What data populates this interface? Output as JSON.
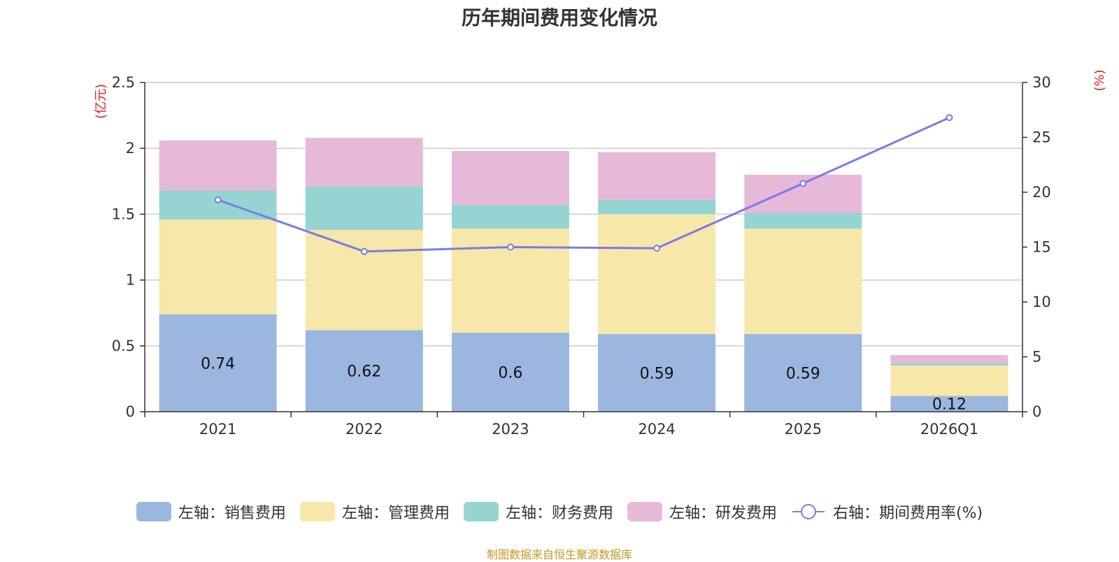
{
  "chart_data": {
    "type": "bar",
    "stacked": true,
    "title": "历年期间费用变化情况",
    "categories": [
      "2021",
      "2022",
      "2023",
      "2024",
      "2025",
      "2026Q1"
    ],
    "series": [
      {
        "name": "左轴：销售费用",
        "axis": "left",
        "color": "#9bb7e0",
        "values": [
          0.74,
          0.62,
          0.6,
          0.59,
          0.59,
          0.12
        ]
      },
      {
        "name": "左轴：管理费用",
        "axis": "left",
        "color": "#f7e7a8",
        "values": [
          0.72,
          0.76,
          0.79,
          0.91,
          0.8,
          0.23
        ]
      },
      {
        "name": "左轴：财务费用",
        "axis": "left",
        "color": "#96d4d4",
        "values": [
          0.22,
          0.33,
          0.18,
          0.11,
          0.12,
          0.02
        ]
      },
      {
        "name": "左轴：研发费用",
        "axis": "left",
        "color": "#e7b9d9",
        "values": [
          0.38,
          0.37,
          0.41,
          0.36,
          0.29,
          0.06
        ]
      }
    ],
    "line_series": {
      "name": "右轴：期间费用率(%)",
      "axis": "right",
      "color": "#7b7be8",
      "values": [
        19.3,
        14.6,
        15.0,
        14.9,
        20.8,
        26.8
      ]
    },
    "data_labels": [
      "0.74",
      "0.62",
      "0.6",
      "0.59",
      "0.59",
      "0.12"
    ],
    "left_axis": {
      "label": "(亿元)",
      "ylim": [
        0,
        2.5
      ],
      "ticks": [
        "0",
        "0.5",
        "1",
        "1.5",
        "2",
        "2.5"
      ],
      "tick_values": [
        0,
        0.5,
        1,
        1.5,
        2,
        2.5
      ]
    },
    "right_axis": {
      "label": "(%)",
      "ylim": [
        0,
        30
      ],
      "ticks": [
        "0",
        "5",
        "10",
        "15",
        "20",
        "25",
        "30"
      ],
      "tick_values": [
        0,
        5,
        10,
        15,
        20,
        25,
        30
      ]
    },
    "grid": true,
    "legend_position": "bottom"
  },
  "source": "制图数据来自恒生聚源数据库"
}
